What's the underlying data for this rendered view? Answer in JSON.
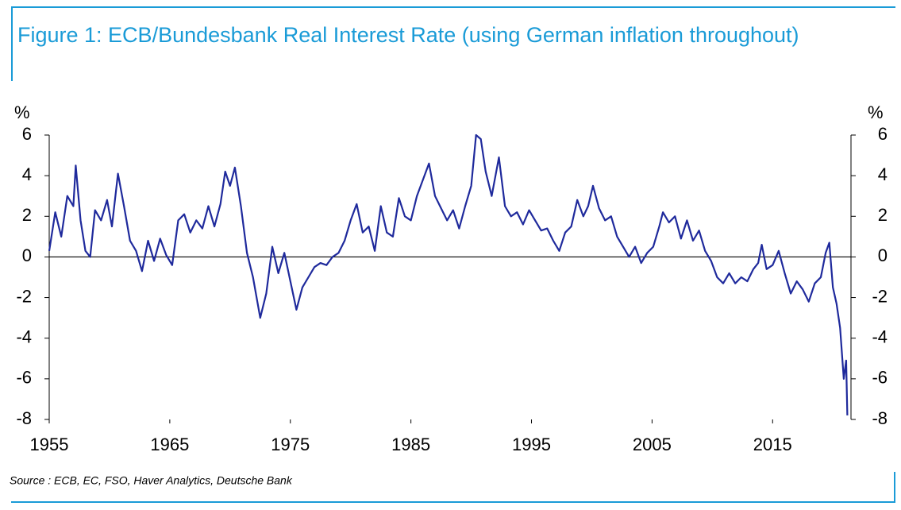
{
  "chart_data": {
    "type": "line",
    "title": "Figure 1: ECB/Bundesbank Real Interest Rate (using German inflation throughout)",
    "y_unit": "%",
    "source": "Source : ECB, EC, FSO, Haver Analytics, Deutsche Bank",
    "x": [
      1955,
      1955.5,
      1956,
      1956.5,
      1957,
      1957.2,
      1957.6,
      1958,
      1958.4,
      1958.8,
      1959.3,
      1959.8,
      1960.2,
      1960.7,
      1961.2,
      1961.7,
      1962.2,
      1962.7,
      1963.2,
      1963.7,
      1964.2,
      1964.7,
      1965.2,
      1965.7,
      1966.2,
      1966.7,
      1967.2,
      1967.7,
      1968.2,
      1968.7,
      1969.2,
      1969.6,
      1970,
      1970.4,
      1970.9,
      1971.4,
      1971.9,
      1972.5,
      1973,
      1973.5,
      1974,
      1974.5,
      1975,
      1975.5,
      1976,
      1976.5,
      1977,
      1977.5,
      1978,
      1978.5,
      1979,
      1979.5,
      1980,
      1980.5,
      1981,
      1981.5,
      1982,
      1982.5,
      1983,
      1983.5,
      1984,
      1984.5,
      1985,
      1985.5,
      1986,
      1986.5,
      1987,
      1987.5,
      1988,
      1988.5,
      1989,
      1989.5,
      1990,
      1990.4,
      1990.8,
      1991.2,
      1991.7,
      1992.3,
      1992.8,
      1993.3,
      1993.8,
      1994.3,
      1994.8,
      1995.3,
      1995.8,
      1996.3,
      1996.8,
      1997.3,
      1997.8,
      1998.3,
      1998.8,
      1999.3,
      1999.7,
      2000.1,
      2000.6,
      2001.1,
      2001.6,
      2002.1,
      2002.6,
      2003.1,
      2003.6,
      2004.1,
      2004.6,
      2005.1,
      2005.6,
      2005.9,
      2006.4,
      2006.9,
      2007.4,
      2007.9,
      2008.4,
      2008.9,
      2009.4,
      2009.9,
      2010.4,
      2010.9,
      2011.4,
      2011.9,
      2012.4,
      2012.9,
      2013.4,
      2013.8,
      2014.1,
      2014.5,
      2015,
      2015.5,
      2016,
      2016.5,
      2017,
      2017.5,
      2018,
      2018.5,
      2019,
      2019.4,
      2019.7,
      2020,
      2020.3,
      2020.6,
      2020.9,
      2021.1,
      2021.2
    ],
    "series": [
      {
        "name": "Real interest rate",
        "color": "#1f2a9c",
        "values": [
          0.3,
          2.2,
          1.0,
          3.0,
          2.5,
          4.5,
          1.8,
          0.3,
          0.0,
          2.3,
          1.8,
          2.8,
          1.5,
          4.1,
          2.5,
          0.8,
          0.3,
          -0.7,
          0.8,
          -0.2,
          0.9,
          0.1,
          -0.4,
          1.8,
          2.1,
          1.2,
          1.8,
          1.4,
          2.5,
          1.5,
          2.6,
          4.2,
          3.5,
          4.4,
          2.5,
          0.2,
          -1.0,
          -3.0,
          -1.8,
          0.5,
          -0.8,
          0.2,
          -1.2,
          -2.6,
          -1.5,
          -1.0,
          -0.5,
          -0.3,
          -0.4,
          0.0,
          0.2,
          0.8,
          1.8,
          2.6,
          1.2,
          1.5,
          0.3,
          2.5,
          1.2,
          1.0,
          2.9,
          2.0,
          1.8,
          3.0,
          3.8,
          4.6,
          3.0,
          2.4,
          1.8,
          2.3,
          1.4,
          2.5,
          3.5,
          6.0,
          5.8,
          4.2,
          3.0,
          4.9,
          2.5,
          2.0,
          2.2,
          1.6,
          2.3,
          1.8,
          1.3,
          1.4,
          0.8,
          0.3,
          1.2,
          1.5,
          2.8,
          2.0,
          2.5,
          3.5,
          2.4,
          1.8,
          2.0,
          1.0,
          0.5,
          0.0,
          0.5,
          -0.3,
          0.2,
          0.5,
          1.5,
          2.2,
          1.7,
          2.0,
          0.9,
          1.8,
          0.8,
          1.3,
          0.3,
          -0.2,
          -1.0,
          -1.3,
          -0.8,
          -1.3,
          -1.0,
          -1.2,
          -0.6,
          -0.3,
          0.6,
          -0.6,
          -0.4,
          0.3,
          -0.8,
          -1.8,
          -1.2,
          -1.6,
          -2.2,
          -1.3,
          -1.0,
          0.2,
          0.7,
          -1.5,
          -2.3,
          -3.5,
          -6.0,
          -5.1,
          -7.8
        ]
      }
    ],
    "xlim": [
      1955,
      2021.5
    ],
    "xticks": [
      1955,
      1965,
      1975,
      1985,
      1995,
      2005,
      2015
    ],
    "ylim": [
      -8,
      6
    ],
    "yticks": [
      -8,
      -6,
      -4,
      -2,
      0,
      2,
      4,
      6
    ],
    "y2lim": [
      -8,
      6
    ],
    "y2ticks": [
      -8,
      -6,
      -4,
      -2,
      0,
      2,
      4,
      6
    ],
    "zero_line": true
  }
}
